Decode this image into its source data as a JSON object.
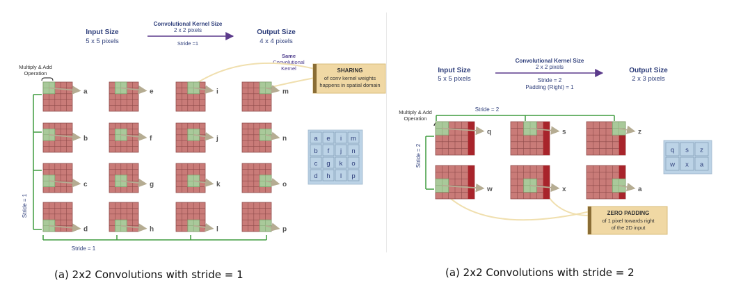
{
  "left": {
    "input_size_title": "Input Size",
    "input_size_value": "5 x 5 pixels",
    "kernel_title": "Convolutional Kernel Size",
    "kernel_value": "2 x 2 pixels",
    "stride_top": "Stride =1",
    "output_size_title": "Output Size",
    "output_size_value": "4 x 4 pixels",
    "multiply_line1": "Multiply & Add",
    "multiply_line2": "Operation",
    "same_line1": "Same",
    "same_line2": "Convolutional",
    "same_line3": "Kernel",
    "sharing_title": "SHARING",
    "sharing_line1": "of conv kernel weights",
    "sharing_line2": "happens in spatial domain",
    "stride_vertical": "Stride = 1",
    "stride_bottom": "Stride = 1",
    "grid_labels": [
      [
        "a",
        "e",
        "i",
        "m"
      ],
      [
        "b",
        "f",
        "j",
        "n"
      ],
      [
        "c",
        "g",
        "k",
        "o"
      ],
      [
        "d",
        "h",
        "l",
        "p"
      ]
    ],
    "caption": "(a) 2x2 Convolutions with stride = 1"
  },
  "right": {
    "input_size_title": "Input Size",
    "input_size_value": "5 x 5 pixels",
    "kernel_title": "Convolutional Kernel Size",
    "kernel_value": "2 x 2 pixels",
    "stride_text": "Stride = 2",
    "padding_text": "Padding (Right) = 1",
    "output_size_title": "Output Size",
    "output_size_value": "2 x 3 pixels",
    "multiply_line1": "Multiply & Add",
    "multiply_line2": "Operation",
    "stride_top": "Stride = 2",
    "stride_vertical": "Stride = 2",
    "padding_title": "ZERO PADDING",
    "padding_line1": "of 1 pixel towards right",
    "padding_line2": "of the 2D input",
    "grid_labels": [
      [
        "q",
        "s",
        "z"
      ],
      [
        "w",
        "x",
        "a"
      ]
    ],
    "caption": "(a) 2x2 Convolutions with stride = 2"
  },
  "colors": {
    "cell": "#c97b78",
    "cell_line": "#8e4b4a",
    "kernel": "#a9c99a",
    "padding": "#a8242b",
    "arrow": "#b5ac92",
    "bracket": "#3f9b3f",
    "purple": "#5b3a8b",
    "output_box": "#bcd3e6",
    "note_box": "#f0d8a4",
    "curve": "#f0dfae"
  }
}
